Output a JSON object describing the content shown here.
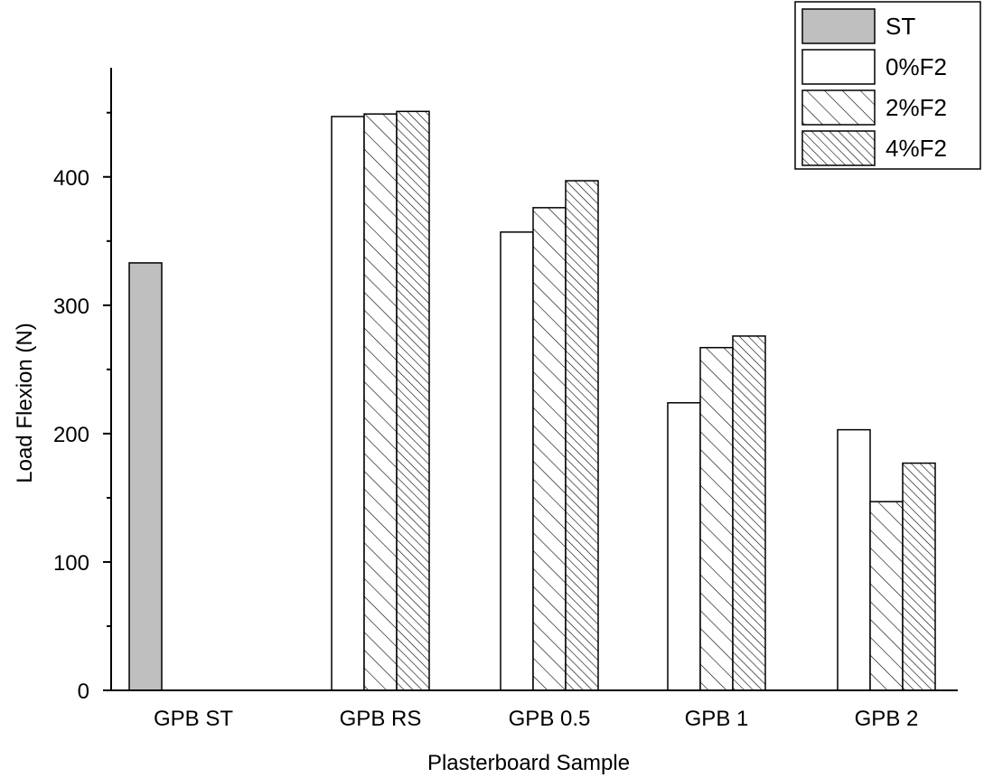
{
  "chart_data": {
    "type": "bar",
    "xlabel": "Plasterboard Sample",
    "ylabel": "Load Flexion (N)",
    "categories": [
      "GPB ST",
      "GPB RS",
      "GPB 0.5",
      "GPB 1",
      "GPB 2"
    ],
    "ylim": [
      0,
      485
    ],
    "yticks": [
      0,
      100,
      200,
      300,
      400
    ],
    "legend_position": "top-right",
    "series": [
      {
        "name": "ST",
        "pattern": "solid-gray",
        "color": "#bfbfbf",
        "values": [
          333,
          null,
          null,
          null,
          null
        ]
      },
      {
        "name": "0%F2",
        "pattern": "white",
        "color": "#ffffff",
        "values": [
          null,
          447,
          357,
          224,
          203
        ]
      },
      {
        "name": "2%F2",
        "pattern": "hatch-sparse",
        "color": "#ffffff",
        "values": [
          null,
          449,
          376,
          267,
          147
        ]
      },
      {
        "name": "4%F2",
        "pattern": "hatch-dense",
        "color": "#ffffff",
        "values": [
          null,
          451,
          397,
          276,
          177
        ]
      }
    ]
  }
}
